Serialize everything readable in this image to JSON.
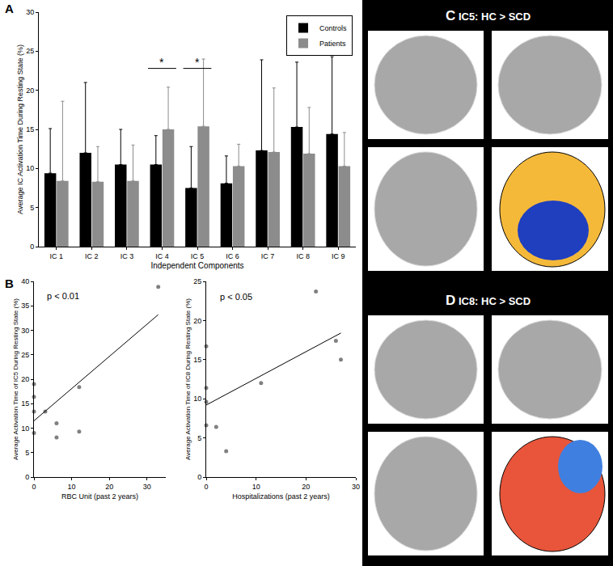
{
  "chart_data": [
    {
      "type": "bar",
      "panel": "A",
      "xlabel": "Independent Components",
      "ylabel": "Average IC Activation Time During Resting State (%)",
      "categories": [
        "IC 1",
        "IC 2",
        "IC 3",
        "IC 4",
        "IC 5",
        "IC 6",
        "IC 7",
        "IC 8",
        "IC 9"
      ],
      "series": [
        {
          "name": "Controls",
          "color": "#000000",
          "values": [
            9.4,
            12.0,
            10.5,
            10.5,
            7.5,
            8.1,
            12.3,
            15.3,
            14.4
          ],
          "error": [
            5.7,
            9.0,
            4.5,
            3.7,
            5.3,
            3.5,
            11.6,
            8.3,
            9.9
          ]
        },
        {
          "name": "Patients",
          "color": "#8c8c8c",
          "values": [
            8.4,
            8.3,
            8.4,
            15.0,
            15.4,
            10.3,
            12.1,
            11.9,
            10.3
          ],
          "error": [
            10.2,
            4.5,
            4.6,
            5.4,
            8.6,
            2.8,
            8.2,
            5.9,
            4.3
          ]
        }
      ],
      "annotations": [
        {
          "category": "IC 4",
          "text": "*",
          "y": 22.8
        },
        {
          "category": "IC 5",
          "text": "*",
          "y": 22.8
        }
      ],
      "ylim": [
        0,
        30
      ],
      "yticks": [
        0,
        5,
        10,
        15,
        20,
        25,
        30
      ],
      "legend": "top right",
      "grid": false
    },
    {
      "type": "scatter",
      "panel": "B",
      "xlabel": "RBC Unit (past 2 years)",
      "ylabel": "Average Activation Time of IC5 During Resting State (%)",
      "x": [
        0,
        0,
        0,
        0,
        3,
        6,
        6,
        12,
        12,
        33
      ],
      "values": [
        19.0,
        16.4,
        13.4,
        9.0,
        13.4,
        11.0,
        8.1,
        18.4,
        9.3,
        38.9
      ],
      "color": "#808080",
      "fit": {
        "x": [
          0,
          33
        ],
        "y": [
          11.5,
          33.2
        ]
      },
      "annotations": [
        {
          "text": "p < 0.01",
          "x": 3,
          "y": 37
        }
      ],
      "xlim": [
        0,
        35
      ],
      "xticks": [
        0,
        10,
        20,
        30
      ],
      "ylim": [
        0,
        40
      ],
      "yticks": [
        0,
        5,
        10,
        15,
        20,
        25,
        30,
        35,
        40
      ],
      "grid": false
    },
    {
      "type": "scatter",
      "xlabel": "Hospitalizations (past 2 years)",
      "ylabel": "Average Activation Time of IC8 During Resting State (%)",
      "x": [
        0,
        0,
        0,
        0,
        2,
        4,
        11,
        22,
        26,
        27
      ],
      "values": [
        16.7,
        11.4,
        9.6,
        6.6,
        6.4,
        3.3,
        12.0,
        23.7,
        17.4,
        15.0
      ],
      "color": "#808080",
      "fit": {
        "x": [
          0,
          27
        ],
        "y": [
          9.2,
          18.4
        ]
      },
      "annotations": [
        {
          "text": "p < 0.05",
          "x": 2.5,
          "y": 23
        }
      ],
      "xlim": [
        0,
        30
      ],
      "xticks": [
        0,
        10,
        20,
        30
      ],
      "ylim": [
        0,
        25
      ],
      "yticks": [
        0,
        5,
        10,
        15,
        20,
        25
      ],
      "grid": false
    }
  ],
  "image_panels": [
    {
      "label": "C",
      "title": "IC5: HC > SCD"
    },
    {
      "label": "D",
      "title": "IC8: HC > SCD"
    }
  ]
}
